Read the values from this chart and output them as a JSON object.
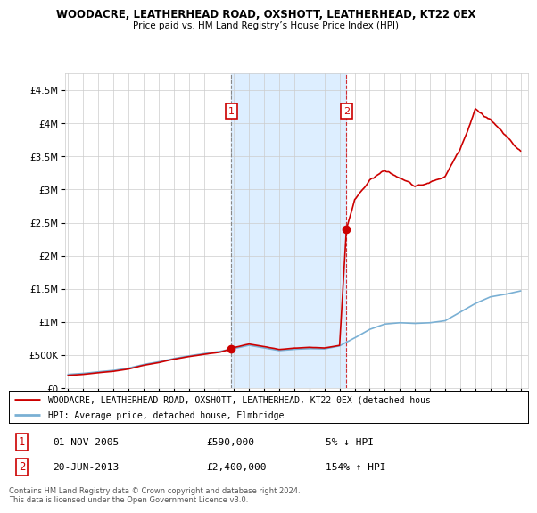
{
  "title": "WOODACRE, LEATHERHEAD ROAD, OXSHOTT, LEATHERHEAD, KT22 0EX",
  "subtitle": "Price paid vs. HM Land Registry’s House Price Index (HPI)",
  "legend_line1": "WOODACRE, LEATHERHEAD ROAD, OXSHOTT, LEATHERHEAD, KT22 0EX (detached hous",
  "legend_line2": "HPI: Average price, detached house, Elmbridge",
  "footnote": "Contains HM Land Registry data © Crown copyright and database right 2024.\nThis data is licensed under the Open Government Licence v3.0.",
  "sale1_date": "01-NOV-2005",
  "sale1_price": "£590,000",
  "sale1_hpi": "5% ↓ HPI",
  "sale2_date": "20-JUN-2013",
  "sale2_price": "£2,400,000",
  "sale2_hpi": "154% ↑ HPI",
  "sale1_x": 2005.83,
  "sale1_y": 590000,
  "sale2_x": 2013.46,
  "sale2_y": 2400000,
  "vline1_x": 2005.83,
  "vline2_x": 2013.46,
  "ylim": [
    0,
    4750000
  ],
  "xlim": [
    1994.8,
    2025.5
  ],
  "red_color": "#cc0000",
  "blue_color": "#7ab0d4",
  "shade_color": "#ddeeff",
  "background_color": "#ffffff",
  "grid_color": "#cccccc",
  "title_fontsize": 9,
  "subtitle_fontsize": 8
}
